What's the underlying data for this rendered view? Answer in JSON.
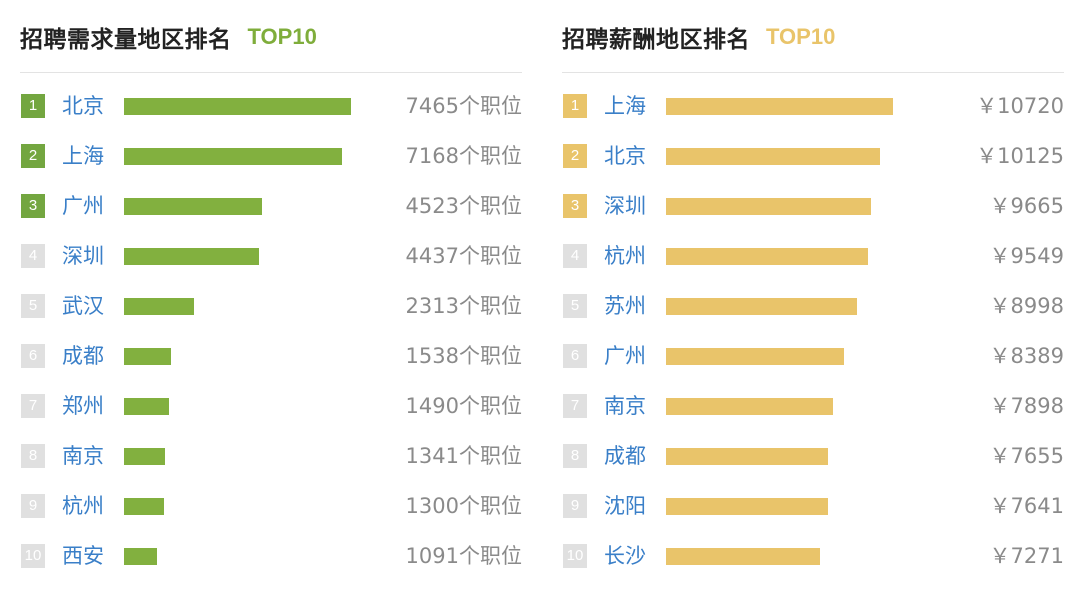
{
  "chart_data": [
    {
      "type": "bar",
      "title": "招聘需求量地区排名",
      "badge": "TOP10",
      "value_suffix": "个职位",
      "categories": [
        "北京",
        "上海",
        "广州",
        "深圳",
        "武汉",
        "成都",
        "郑州",
        "南京",
        "杭州",
        "西安"
      ],
      "ranks": [
        "1",
        "2",
        "3",
        "4",
        "5",
        "6",
        "7",
        "8",
        "9",
        "10"
      ],
      "values": [
        7465,
        7168,
        4523,
        4437,
        2313,
        1538,
        1490,
        1341,
        1300,
        1091
      ],
      "xlim": [
        0,
        7465
      ],
      "colors": {
        "bar": "#82b03f",
        "top_rank": "#73a640",
        "rank": "#e0e0e0",
        "city": "#3a7fc8"
      }
    },
    {
      "type": "bar",
      "title": "招聘薪酬地区排名",
      "badge": "TOP10",
      "value_prefix": "￥",
      "categories": [
        "上海",
        "北京",
        "深圳",
        "杭州",
        "苏州",
        "广州",
        "南京",
        "成都",
        "沈阳",
        "长沙"
      ],
      "ranks": [
        "1",
        "2",
        "3",
        "4",
        "5",
        "6",
        "7",
        "8",
        "9",
        "10"
      ],
      "values": [
        10720,
        10125,
        9665,
        9549,
        8998,
        8389,
        7898,
        7655,
        7641,
        7271
      ],
      "xlim": [
        0,
        10720
      ],
      "colors": {
        "bar": "#e9c46a",
        "top_rank": "#e9c46a",
        "rank": "#e0e0e0",
        "city": "#3a7fc8"
      }
    }
  ]
}
